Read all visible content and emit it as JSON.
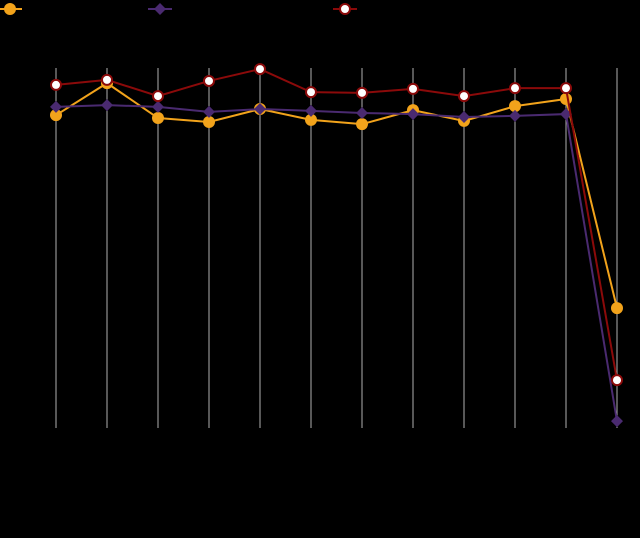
{
  "chart_data": {
    "type": "line",
    "categories": [
      null,
      null,
      null,
      null,
      null,
      null,
      null,
      null,
      null,
      null,
      null,
      null
    ],
    "series": [
      {
        "color": "#f2a31b",
        "marker": "circle",
        "values": [
          86.9,
          95.8,
          86.1,
          85.0,
          88.6,
          85.6,
          84.4,
          88.3,
          85.3,
          89.4,
          91.4,
          33.3
        ]
      },
      {
        "color": "#4a2a70",
        "marker": "diamond",
        "values": [
          89.2,
          89.7,
          89.2,
          87.8,
          88.6,
          88.1,
          87.5,
          87.2,
          86.4,
          86.7,
          87.2,
          1.9
        ]
      },
      {
        "color": "#8b0a0a",
        "marker": "hollow-circle",
        "values": [
          95.3,
          96.7,
          92.2,
          96.4,
          99.7,
          93.3,
          93.1,
          94.2,
          92.2,
          94.4,
          94.4,
          13.3
        ]
      }
    ],
    "ylim": [
      0,
      100
    ],
    "grid": true,
    "legend": "top"
  }
}
